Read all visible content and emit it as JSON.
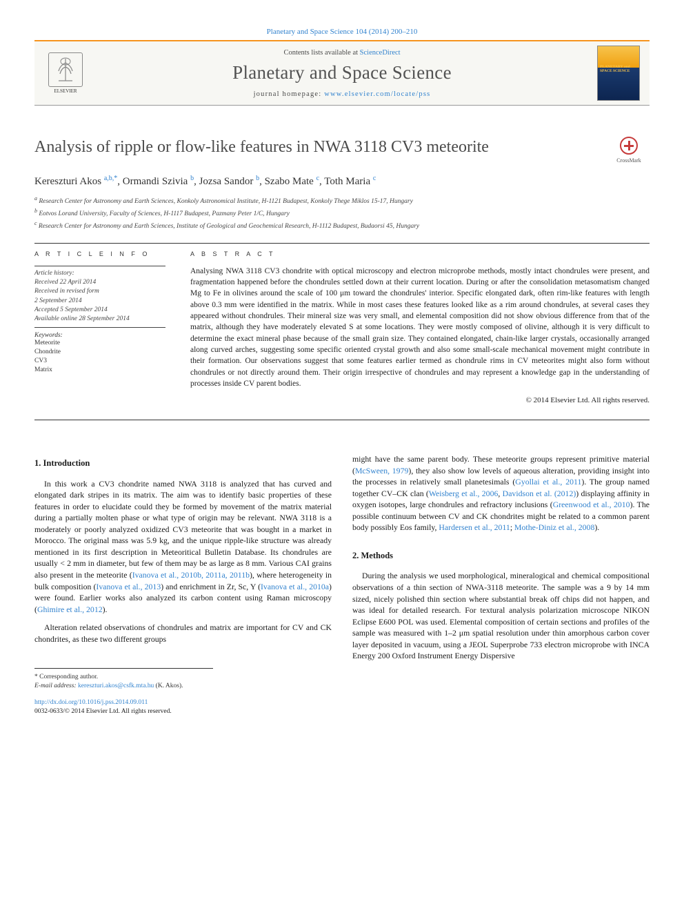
{
  "top_link": "Planetary and Space Science 104 (2014) 200–210",
  "banner": {
    "contents_prefix": "Contents lists available at ",
    "contents_link": "ScienceDirect",
    "journal_name": "Planetary and Space Science",
    "homepage_prefix": "journal homepage: ",
    "homepage_url": "www.elsevier.com/locate/pss",
    "elsevier_label": "ELSEVIER",
    "cover_title": "PLANETARY and SPACE SCIENCE"
  },
  "article": {
    "title": "Analysis of ripple or flow-like features in NWA 3118 CV3 meteorite",
    "crossmark_label": "CrossMark",
    "authors_html": "Kereszturi Akos <sup>a,b,*</sup>, Ormandi Szivia <sup>b</sup>, Jozsa Sandor <sup>b</sup>, Szabo Mate <sup>c</sup>, Toth Maria <sup>c</sup>",
    "affiliations": [
      "a Research Center for Astronomy and Earth Sciences, Konkoly Astronomical Institute, H-1121 Budapest, Konkoly Thege Miklos 15-17, Hungary",
      "b Eotvos Lorand University, Faculty of Sciences, H-1117 Budapest, Pazmany Peter 1/C, Hungary",
      "c Research Center for Astronomy and Earth Sciences, Institute of Geological and Geochemical Research, H-1112 Budapest, Budaorsi 45, Hungary"
    ]
  },
  "info": {
    "label": "A R T I C L E   I N F O",
    "history_label": "Article history:",
    "history": [
      "Received 22 April 2014",
      "Received in revised form",
      "2 September 2014",
      "Accepted 5 September 2014",
      "Available online 28 September 2014"
    ],
    "keywords_label": "Keywords:",
    "keywords": [
      "Meteorite",
      "Chondrite",
      "CV3",
      "Matrix"
    ]
  },
  "abstract": {
    "label": "A B S T R A C T",
    "text": "Analysing NWA 3118 CV3 chondrite with optical microscopy and electron microprobe methods, mostly intact chondrules were present, and fragmentation happened before the chondrules settled down at their current location. During or after the consolidation metasomatism changed Mg to Fe in olivines around the scale of 100 μm toward the chondrules' interior. Specific elongated dark, often rim-like features with length above 0.3 mm were identified in the matrix. While in most cases these features looked like as a rim around chondrules, at several cases they appeared without chondrules. Their mineral size was very small, and elemental composition did not show obvious difference from that of the matrix, although they have moderately elevated S at some locations. They were mostly composed of olivine, although it is very difficult to determine the exact mineral phase because of the small grain size. They contained elongated, chain-like larger crystals, occasionally arranged along curved arches, suggesting some specific oriented crystal growth and also some small-scale mechanical movement might contribute in their formation. Our observations suggest that some features earlier termed as chondrule rims in CV meteorites might also form without chondrules or not directly around them. Their origin irrespective of chondrules and may represent a knowledge gap in the understanding of processes inside CV parent bodies.",
    "copyright": "© 2014 Elsevier Ltd. All rights reserved."
  },
  "body": {
    "col1": {
      "heading": "1.  Introduction",
      "p1a": "In this work a CV3 chondrite named NWA 3118 is analyzed that has curved and elongated dark stripes in its matrix. The aim was to identify basic properties of these features in order to elucidate could they be formed by movement of the matrix material during a partially molten phase or what type of origin may be relevant. NWA 3118 is a moderately or poorly analyzed oxidized CV3 meteorite that was bought in a market in Morocco. The original mass was 5.9 kg, and the unique ripple-like structure was already mentioned in its first description in Meteoritical Bulletin Database. Its chondrules are usually < 2 mm in diameter, but few of them may be as large as 8 mm. Various CAI grains also present in the meteorite (",
      "p1_link1": "Ivanova et al., 2010b, 2011a, 2011b",
      "p1b": "), where heterogeneity in bulk composition (",
      "p1_link2": "Ivanova et al., 2013",
      "p1c": ") and enrichment in Zr, Sc, Y (",
      "p1_link3": "Ivanova et al., 2010a",
      "p1d": ") were found. Earlier works also analyzed its carbon content using Raman microscopy (",
      "p1_link4": "Ghimire et al., 2012",
      "p1e": ").",
      "p2": "Alteration related observations of chondrules and matrix are important for CV and CK chondrites, as these two different groups"
    },
    "col2": {
      "p1a": "might have the same parent body. These meteorite groups represent primitive material (",
      "p1_link1": "McSween, 1979",
      "p1b": "), they also show low levels of aqueous alteration, providing insight into the processes in relatively small planetesimals (",
      "p1_link2": "Gyollai et al., 2011",
      "p1c": "). The group named together CV–CK clan (",
      "p1_link3": "Weisberg et al., 2006",
      "p1d": ", ",
      "p1_link4": "Davidson et al. (2012)",
      "p1e": ") displaying affinity in oxygen isotopes, large chondrules and refractory inclusions (",
      "p1_link5": "Greenwood et al., 2010",
      "p1f": "). The possible continuum between CV and CK chondrites might be related to a common parent body possibly Eos family, ",
      "p1_link6": "Hardersen et al., 2011",
      "p1g": "; ",
      "p1_link7": "Mothe-Diniz et al., 2008",
      "p1h": ").",
      "heading": "2.  Methods",
      "p2": "During the analysis we used morphological, mineralogical and chemical compositional observations of a thin section of NWA-3118 meteorite. The sample was a 9 by 14 mm sized, nicely polished thin section where substantial break off chips did not happen, and was ideal for detailed research. For textural analysis polarization microscope NIKON Eclipse E600 POL was used. Elemental composition of certain sections and profiles of the sample was measured with 1–2 μm spatial resolution under thin amorphous carbon cover layer deposited in vacuum, using a JEOL Superprobe 733 electron microprobe with INCA Energy 200 Oxford Instrument Energy Dispersive"
    }
  },
  "footer": {
    "corr_label": "* Corresponding author.",
    "email_label": "E-mail address: ",
    "email": "kereszturi.akos@csfk.mta.hu",
    "email_suffix": " (K. Akos).",
    "doi": "http://dx.doi.org/10.1016/j.pss.2014.09.011",
    "issn_line": "0032-0633/© 2014 Elsevier Ltd. All rights reserved."
  },
  "colors": {
    "link": "#3182ce",
    "rule_orange": "#f7941d",
    "text_gray": "#4a4a4a"
  }
}
